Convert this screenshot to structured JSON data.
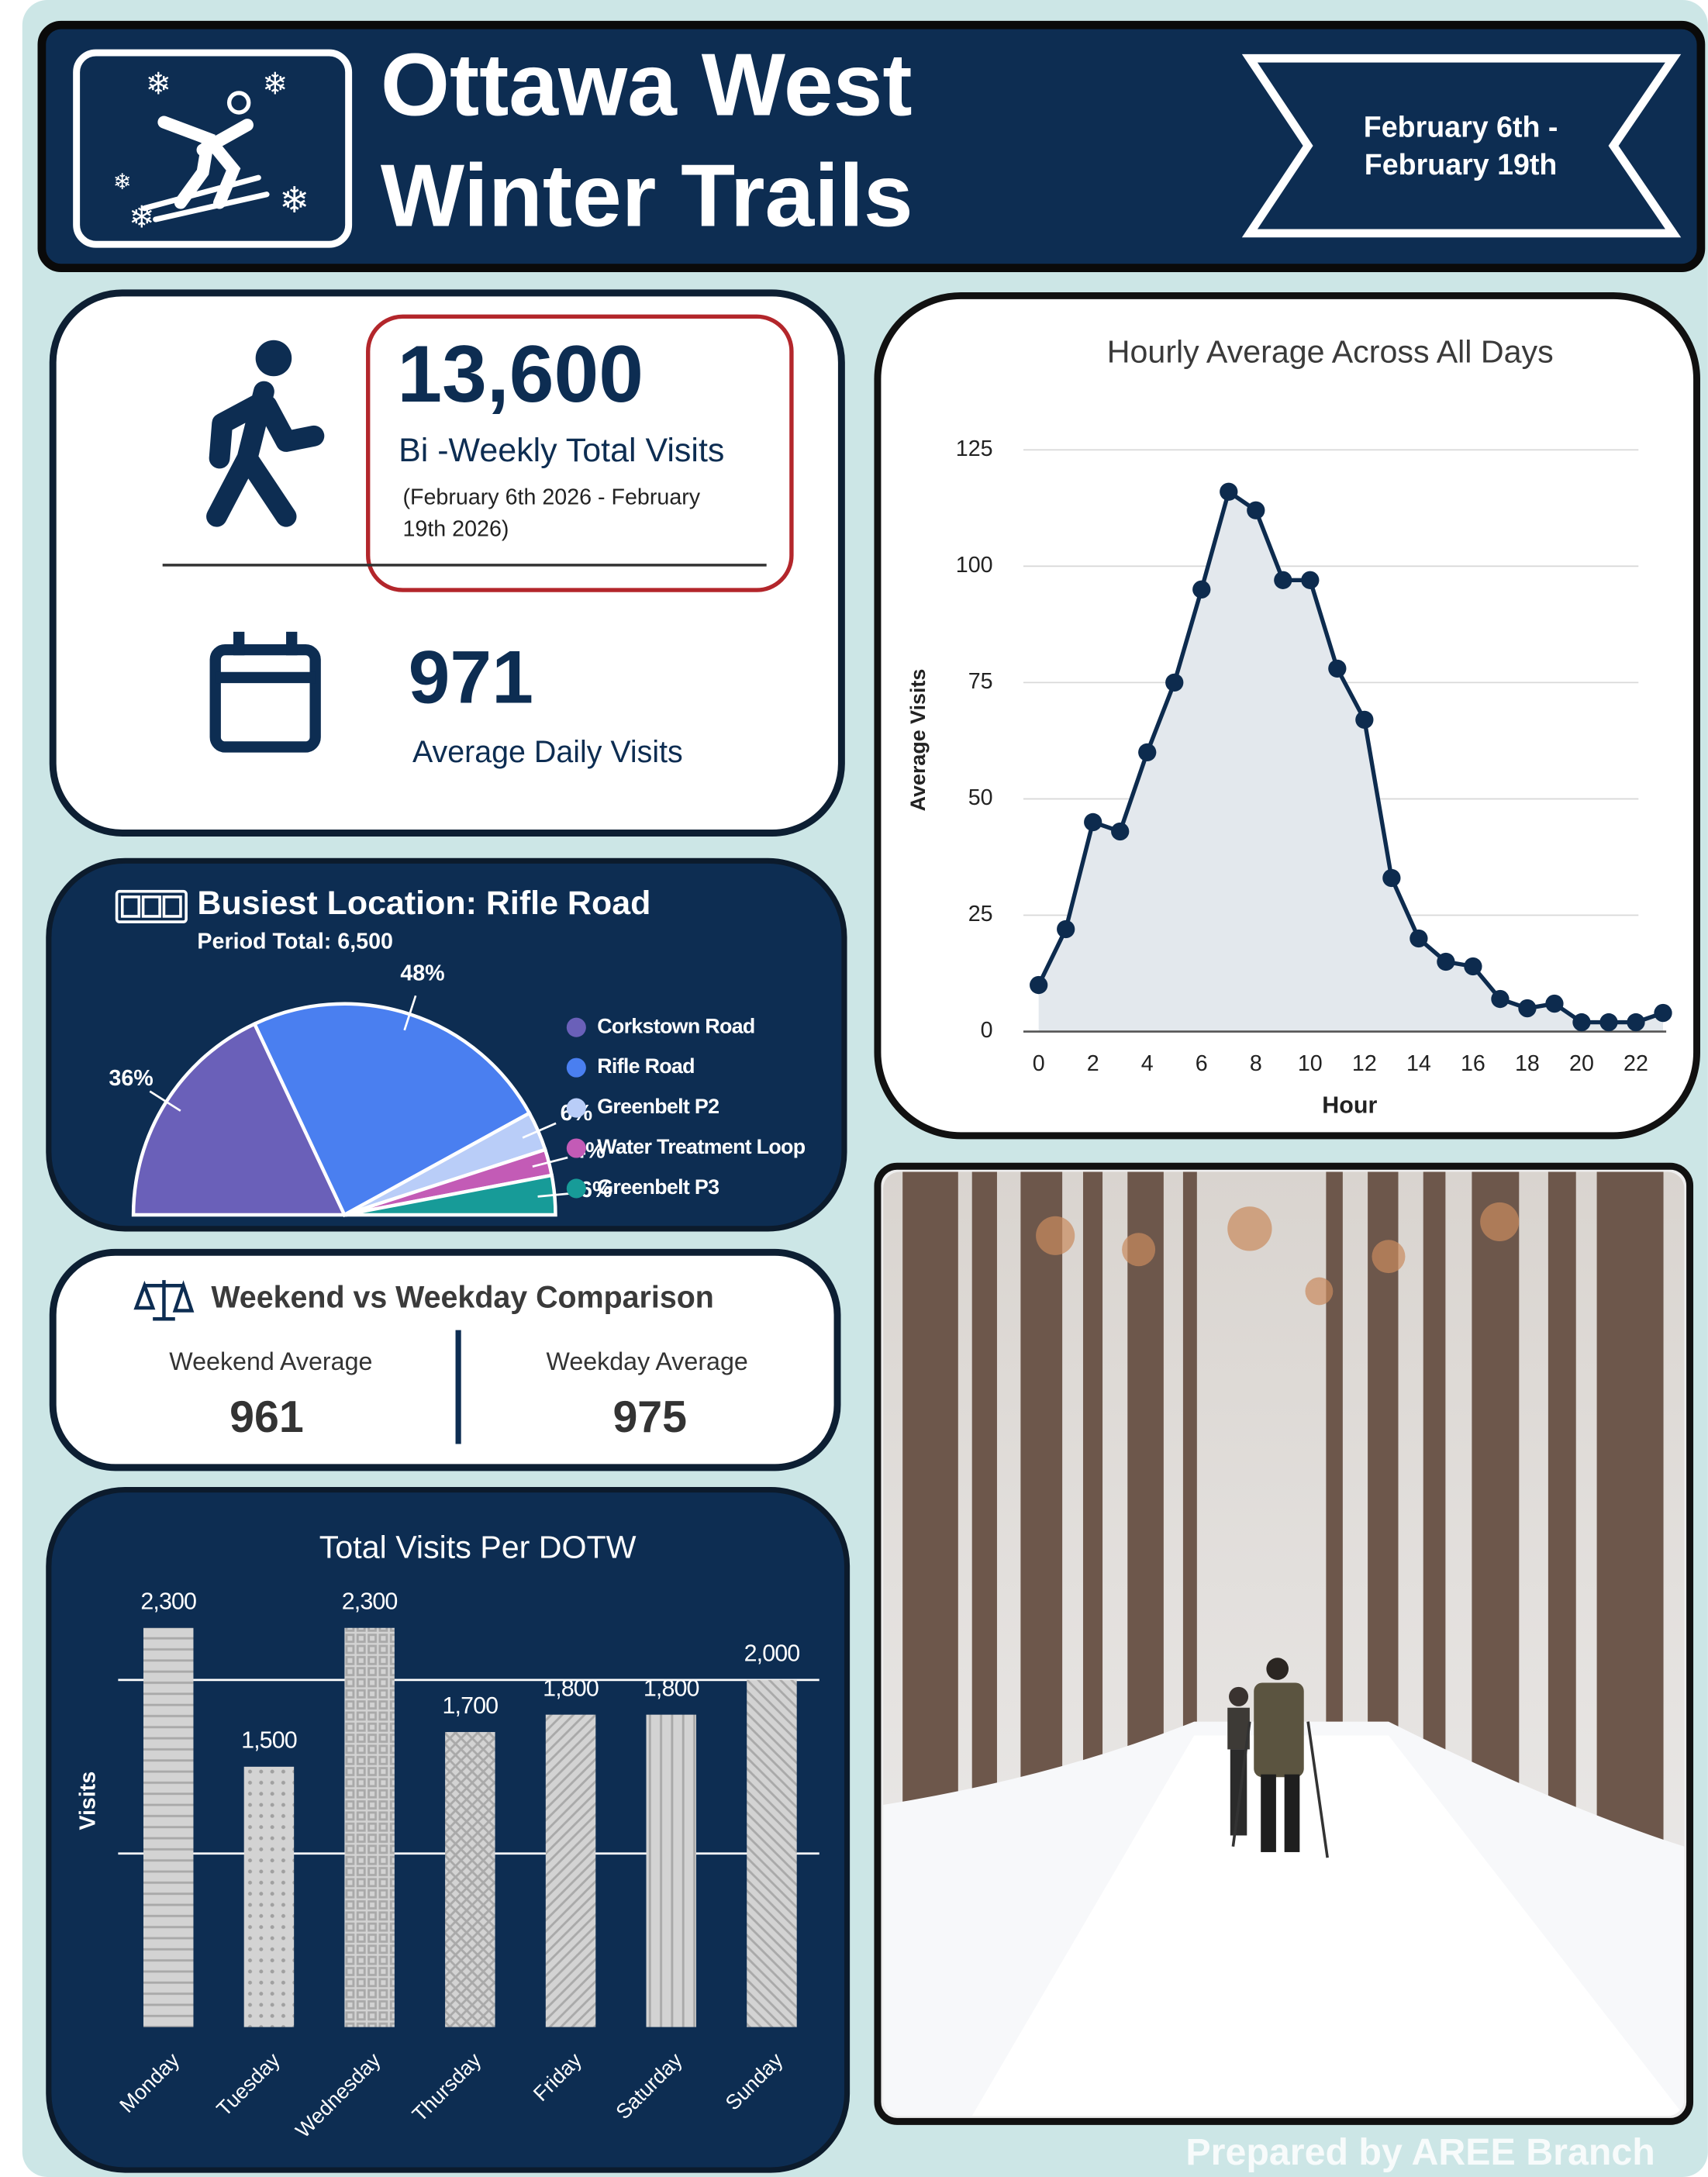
{
  "header": {
    "title_lines": [
      "Ottawa West",
      "Winter Trails"
    ],
    "date_lines": [
      "February 6th -",
      "February 19th"
    ]
  },
  "kpis": {
    "total": {
      "value": "13,600",
      "label": "Bi -Weekly Total Visits",
      "note_lines": [
        "(February 6th 2026 - February",
        "19th 2026)"
      ]
    },
    "daily": {
      "value": "971",
      "label": "Average Daily Visits"
    }
  },
  "comparison": {
    "title": "Weekend vs Weekday Comparison",
    "weekend": {
      "label": "Weekend Average",
      "value": "961"
    },
    "weekday": {
      "label": "Weekday Average",
      "value": "975"
    }
  },
  "chart_data": [
    {
      "type": "line",
      "title": "Hourly Average Across All Days",
      "x_label": "Hour",
      "y_label": "Average Visits",
      "x": [
        0,
        1,
        2,
        3,
        4,
        5,
        6,
        7,
        8,
        9,
        10,
        11,
        12,
        13,
        14,
        15,
        16,
        17,
        18,
        19,
        20,
        21,
        22,
        23
      ],
      "values": [
        10,
        22,
        45,
        43,
        60,
        75,
        95,
        116,
        112,
        97,
        97,
        78,
        67,
        33,
        20,
        15,
        14,
        7,
        5,
        6,
        2,
        2,
        2,
        4
      ],
      "xlim": [
        0,
        23
      ],
      "ylim": [
        0,
        125
      ],
      "xticks": [
        0,
        2,
        4,
        6,
        8,
        10,
        12,
        14,
        16,
        18,
        20,
        22
      ],
      "yticks": [
        0,
        25,
        50,
        75,
        100,
        125
      ],
      "grid": true,
      "color": "#0d2b4e",
      "fill": "#e3e8ed"
    },
    {
      "type": "pie",
      "half": true,
      "title": "Busiest Location: Rifle Road",
      "subtitle": "Period Total: 6,500",
      "categories": [
        "Corkstown Road",
        "Rifle Road",
        "Greenbelt P2",
        "Water Treatment Loop",
        "Greenbelt P3"
      ],
      "values": [
        36,
        48,
        6,
        4,
        6
      ],
      "value_labels": [
        "36%",
        "48%",
        "6%",
        "4%",
        "6%"
      ],
      "colors": [
        "#6a60b9",
        "#4a7ff0",
        "#b9cdf8",
        "#c35bb6",
        "#179b98"
      ]
    },
    {
      "type": "bar",
      "title": "Total Visits Per DOTW",
      "y_label": "Visits",
      "categories": [
        "Monday",
        "Tuesday",
        "Wednesday",
        "Thursday",
        "Friday",
        "Saturday",
        "Sunday"
      ],
      "values": [
        2300,
        1500,
        2300,
        1700,
        1800,
        1800,
        2000
      ],
      "value_labels": [
        "2,300",
        "1,500",
        "2,300",
        "1,700",
        "1,800",
        "1,800",
        "2,000"
      ],
      "ylim": [
        0,
        2500
      ],
      "yticks": [
        1000,
        2000
      ],
      "grid": true,
      "color": "#d3d3d3"
    }
  ],
  "footer": "Prepared by AREE Branch"
}
